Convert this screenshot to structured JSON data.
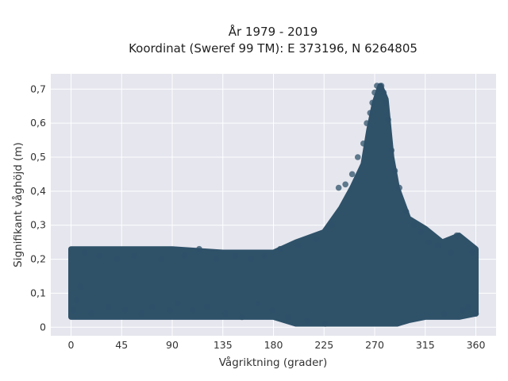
{
  "chart_data": {
    "type": "scatter",
    "title": "År 1979 - 2019",
    "subtitle": "Koordinat (Sweref 99 TM): E 373196, N 6264805",
    "xlabel": "Vågriktning (grader)",
    "ylabel": "Signifikant våghöjd (m)",
    "xlim": [
      -18,
      378
    ],
    "ylim": [
      -0.025,
      0.745
    ],
    "xticks": [
      0,
      45,
      90,
      135,
      180,
      225,
      270,
      315,
      360
    ],
    "xtick_labels": [
      "0",
      "45",
      "90",
      "135",
      "180",
      "225",
      "270",
      "315",
      "360"
    ],
    "yticks": [
      0,
      0.1,
      0.2,
      0.3,
      0.4,
      0.5,
      0.6,
      0.7
    ],
    "ytick_labels": [
      "0",
      "0,1",
      "0,2",
      "0,3",
      "0,4",
      "0,5",
      "0,6",
      "0,7"
    ],
    "grid": true,
    "marker_color": "#2f5269",
    "background_color": "#e5e6ee",
    "series_envelope": {
      "x": [
        0,
        20,
        45,
        90,
        135,
        180,
        200,
        225,
        240,
        250,
        260,
        265,
        270,
        275,
        280,
        285,
        290,
        300,
        315,
        330,
        345,
        360
      ],
      "y_min": [
        0.03,
        0.03,
        0.03,
        0.03,
        0.03,
        0.03,
        0.01,
        0.01,
        0.01,
        0.01,
        0.01,
        0.01,
        0.01,
        0.01,
        0.01,
        0.01,
        0.01,
        0.02,
        0.03,
        0.03,
        0.03,
        0.04
      ],
      "y_max": [
        0.23,
        0.23,
        0.23,
        0.23,
        0.22,
        0.22,
        0.25,
        0.28,
        0.35,
        0.41,
        0.48,
        0.58,
        0.66,
        0.71,
        0.67,
        0.5,
        0.41,
        0.32,
        0.29,
        0.25,
        0.27,
        0.23
      ]
    },
    "points": [
      {
        "x": 2,
        "y": 0.05
      },
      {
        "x": 5,
        "y": 0.08
      },
      {
        "x": 8,
        "y": 0.12
      },
      {
        "x": 12,
        "y": 0.22
      },
      {
        "x": 18,
        "y": 0.04
      },
      {
        "x": 25,
        "y": 0.21
      },
      {
        "x": 33,
        "y": 0.06
      },
      {
        "x": 41,
        "y": 0.2
      },
      {
        "x": 48,
        "y": 0.05
      },
      {
        "x": 56,
        "y": 0.21
      },
      {
        "x": 63,
        "y": 0.04
      },
      {
        "x": 72,
        "y": 0.06
      },
      {
        "x": 80,
        "y": 0.2
      },
      {
        "x": 88,
        "y": 0.05
      },
      {
        "x": 95,
        "y": 0.07
      },
      {
        "x": 101,
        "y": 0.21
      },
      {
        "x": 108,
        "y": 0.05
      },
      {
        "x": 114,
        "y": 0.23
      },
      {
        "x": 121,
        "y": 0.06
      },
      {
        "x": 129,
        "y": 0.2
      },
      {
        "x": 137,
        "y": 0.04
      },
      {
        "x": 146,
        "y": 0.21
      },
      {
        "x": 152,
        "y": 0.03
      },
      {
        "x": 160,
        "y": 0.2
      },
      {
        "x": 166,
        "y": 0.07
      },
      {
        "x": 172,
        "y": 0.21
      },
      {
        "x": 179,
        "y": 0.05
      },
      {
        "x": 186,
        "y": 0.23
      },
      {
        "x": 193,
        "y": 0.03
      },
      {
        "x": 202,
        "y": 0.24
      },
      {
        "x": 210,
        "y": 0.02
      },
      {
        "x": 218,
        "y": 0.26
      },
      {
        "x": 226,
        "y": 0.01
      },
      {
        "x": 232,
        "y": 0.3
      },
      {
        "x": 238,
        "y": 0.41
      },
      {
        "x": 244,
        "y": 0.42
      },
      {
        "x": 250,
        "y": 0.45
      },
      {
        "x": 255,
        "y": 0.5
      },
      {
        "x": 260,
        "y": 0.54
      },
      {
        "x": 263,
        "y": 0.6
      },
      {
        "x": 266,
        "y": 0.63
      },
      {
        "x": 268,
        "y": 0.66
      },
      {
        "x": 270,
        "y": 0.69
      },
      {
        "x": 272,
        "y": 0.71
      },
      {
        "x": 274,
        "y": 0.7
      },
      {
        "x": 276,
        "y": 0.71
      },
      {
        "x": 278,
        "y": 0.69
      },
      {
        "x": 280,
        "y": 0.66
      },
      {
        "x": 282,
        "y": 0.61
      },
      {
        "x": 285,
        "y": 0.52
      },
      {
        "x": 288,
        "y": 0.46
      },
      {
        "x": 292,
        "y": 0.41
      },
      {
        "x": 298,
        "y": 0.34
      },
      {
        "x": 305,
        "y": 0.3
      },
      {
        "x": 311,
        "y": 0.28
      },
      {
        "x": 318,
        "y": 0.25
      },
      {
        "x": 326,
        "y": 0.24
      },
      {
        "x": 332,
        "y": 0.04
      },
      {
        "x": 338,
        "y": 0.22
      },
      {
        "x": 343,
        "y": 0.27
      },
      {
        "x": 348,
        "y": 0.05
      },
      {
        "x": 353,
        "y": 0.06
      },
      {
        "x": 357,
        "y": 0.22
      },
      {
        "x": 360,
        "y": 0.04
      }
    ]
  }
}
